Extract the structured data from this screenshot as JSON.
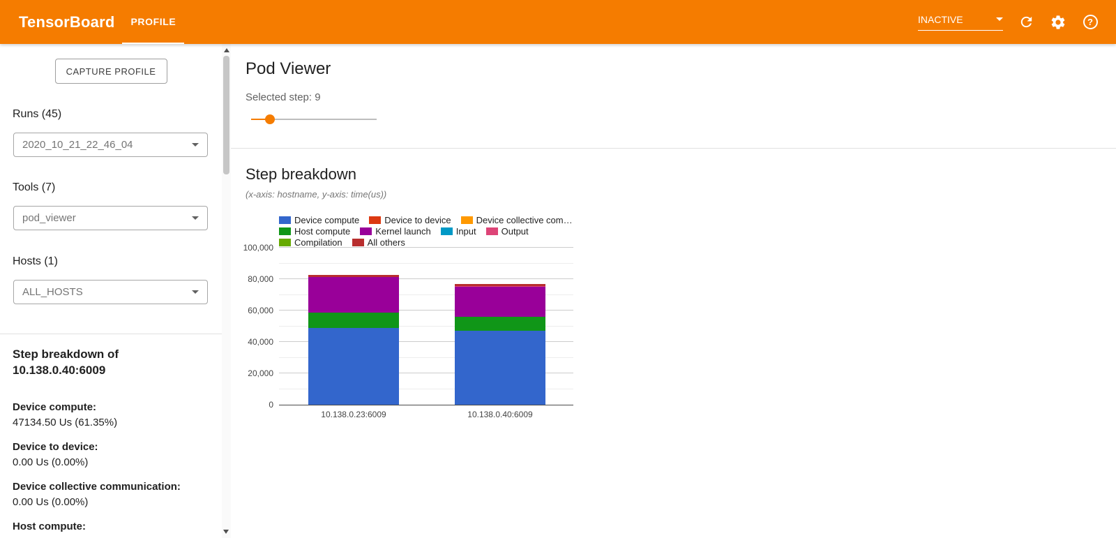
{
  "accent_color": "#f57c00",
  "header": {
    "title": "TensorBoard",
    "tab_label": "PROFILE",
    "status_value": "INACTIVE",
    "help_glyph": "?"
  },
  "sidebar": {
    "capture_button_label": "CAPTURE PROFILE",
    "runs_label": "Runs (45)",
    "runs_selected": "2020_10_21_22_46_04",
    "tools_label": "Tools (7)",
    "tools_selected": "pod_viewer",
    "hosts_label": "Hosts (1)",
    "hosts_selected": "ALL_HOSTS",
    "breakdown_heading_line1": "Step breakdown of",
    "breakdown_heading_line2": "10.138.0.40:6009",
    "stats": [
      {
        "label": "Device compute:",
        "value": "47134.50 Us (61.35%)"
      },
      {
        "label": "Device to device:",
        "value": "0.00 Us (0.00%)"
      },
      {
        "label": "Device collective communication:",
        "value": "0.00 Us (0.00%)"
      },
      {
        "label": "Host compute:",
        "value": ""
      }
    ]
  },
  "main": {
    "page_title": "Pod Viewer",
    "selected_step_text": "Selected step: 9",
    "slider_percent": 15,
    "section_title": "Step breakdown",
    "axis_note": "(x-axis: hostname, y-axis: time(us))"
  },
  "chart_data": {
    "type": "bar",
    "stacked": true,
    "title": "Step breakdown",
    "xlabel": "hostname",
    "ylabel": "time(us)",
    "ylim": [
      0,
      100000
    ],
    "yticks": [
      0,
      20000,
      40000,
      60000,
      80000,
      100000
    ],
    "ytick_labels": [
      "0",
      "20,000",
      "40,000",
      "60,000",
      "80,000",
      "100,000"
    ],
    "minor_ticks": [
      10000,
      30000,
      50000,
      70000,
      90000
    ],
    "grid": true,
    "legend_position": "top",
    "categories": [
      "10.138.0.23:6009",
      "10.138.0.40:6009"
    ],
    "series": [
      {
        "name": "Device compute",
        "legend": "Device compute",
        "legend_row": 0,
        "color": "#3366cc",
        "values": [
          49000,
          47134.5
        ]
      },
      {
        "name": "Device to device",
        "legend": "Device to device",
        "legend_row": 0,
        "color": "#dc3912",
        "values": [
          0,
          0
        ]
      },
      {
        "name": "Device collective communication",
        "legend": "Device collective com…",
        "legend_row": 0,
        "color": "#ff9900",
        "values": [
          0,
          0
        ]
      },
      {
        "name": "Host compute",
        "legend": "Host compute",
        "legend_row": 1,
        "color": "#109618",
        "values": [
          9500,
          8900
        ]
      },
      {
        "name": "Kernel launch",
        "legend": "Kernel launch",
        "legend_row": 1,
        "color": "#990099",
        "values": [
          23000,
          19300
        ]
      },
      {
        "name": "Input",
        "legend": "Input",
        "legend_row": 1,
        "color": "#0099c6",
        "values": [
          0,
          0
        ]
      },
      {
        "name": "Output",
        "legend": "Output",
        "legend_row": 1,
        "color": "#dd4477",
        "values": [
          0,
          400
        ]
      },
      {
        "name": "Compilation",
        "legend": "Compilation",
        "legend_row": 2,
        "color": "#66aa00",
        "values": [
          0,
          0
        ]
      },
      {
        "name": "All others",
        "legend": "All others",
        "legend_row": 2,
        "color": "#b82e2e",
        "values": [
          1300,
          1100
        ]
      }
    ]
  }
}
